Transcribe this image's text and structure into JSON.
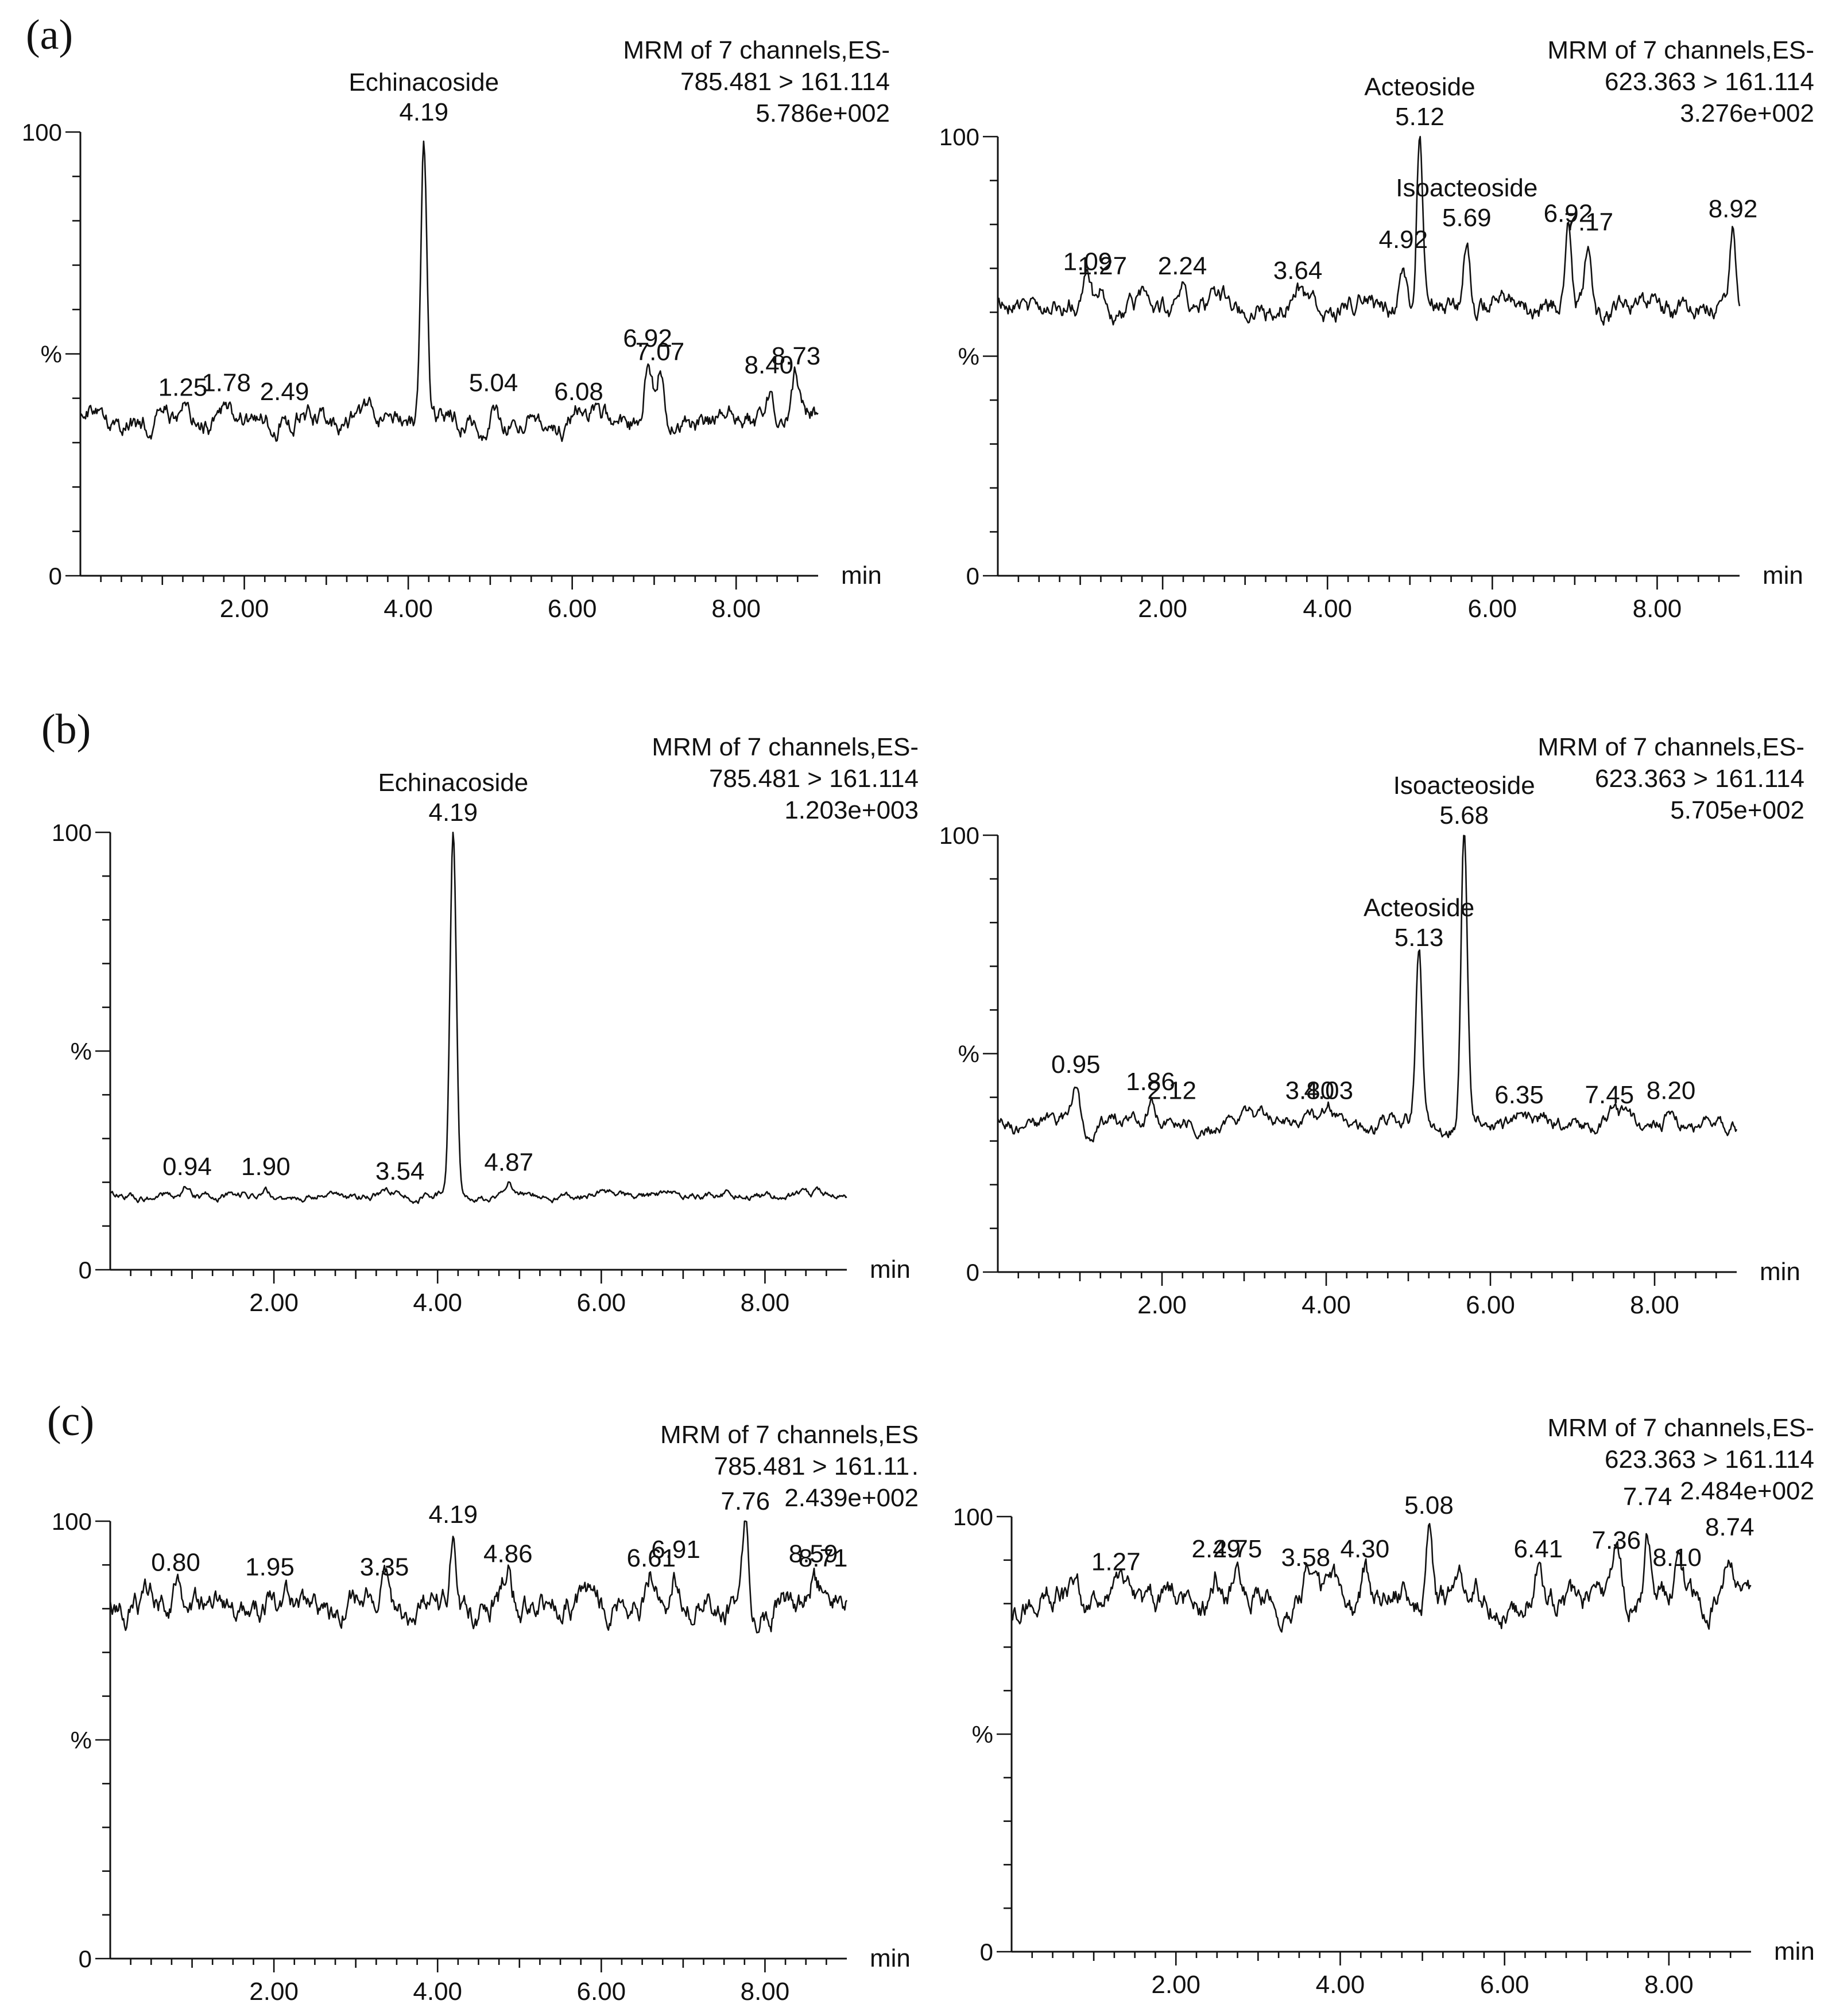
{
  "chart_data": [
    {
      "type": "line",
      "panel": "(a)",
      "title": "",
      "header": [
        "MRM of 7 channels,ES-",
        "785.481 > 161.114",
        "5.786e+002"
      ],
      "xlabel": "min",
      "ylabel": "%",
      "xlim": [
        0,
        9
      ],
      "ylim": [
        0,
        100
      ],
      "xtick_labels": [
        "2.00",
        "4.00",
        "6.00",
        "8.00"
      ],
      "ytick_labels": [
        "0",
        "%",
        "100"
      ],
      "baseline_level": 35,
      "noise": 3.5,
      "peaks": [
        {
          "x": 4.19,
          "y": 100,
          "label": "4.19",
          "compound": "Echinacoside"
        },
        {
          "x": 1.25,
          "y": 38,
          "label": "1.25"
        },
        {
          "x": 1.78,
          "y": 39,
          "label": "1.78"
        },
        {
          "x": 2.49,
          "y": 37,
          "label": "2.49"
        },
        {
          "x": 5.04,
          "y": 39,
          "label": "5.04"
        },
        {
          "x": 6.08,
          "y": 37,
          "label": "6.08"
        },
        {
          "x": 6.92,
          "y": 49,
          "label": "6.92"
        },
        {
          "x": 7.07,
          "y": 46,
          "label": "7.07"
        },
        {
          "x": 8.4,
          "y": 43,
          "label": "8.40"
        },
        {
          "x": 8.73,
          "y": 45,
          "label": "8.73"
        }
      ]
    },
    {
      "type": "line",
      "panel": "",
      "title": "",
      "header": [
        "MRM of 7 channels,ES-",
        "623.363 > 161.114",
        "3.276e+002"
      ],
      "xlabel": "min",
      "ylabel": "%",
      "xlim": [
        0,
        9
      ],
      "ylim": [
        0,
        100
      ],
      "xtick_labels": [
        "2.00",
        "4.00",
        "6.00",
        "8.00"
      ],
      "ytick_labels": [
        "0",
        "%",
        "100"
      ],
      "baseline_level": 61,
      "noise": 3.5,
      "peaks": [
        {
          "x": 5.12,
          "y": 100,
          "label": "5.12",
          "compound": "Acteoside"
        },
        {
          "x": 5.69,
          "y": 77,
          "label": "5.69",
          "compound": "Isoacteoside"
        },
        {
          "x": 1.09,
          "y": 67,
          "label": "1.09"
        },
        {
          "x": 1.27,
          "y": 66,
          "label": "1.27"
        },
        {
          "x": 2.24,
          "y": 66,
          "label": "2.24"
        },
        {
          "x": 3.64,
          "y": 65,
          "label": "3.64"
        },
        {
          "x": 4.92,
          "y": 72,
          "label": "4.92"
        },
        {
          "x": 6.92,
          "y": 78,
          "label": "6.92"
        },
        {
          "x": 7.17,
          "y": 76,
          "label": "7.17"
        },
        {
          "x": 8.92,
          "y": 79,
          "label": "8.92"
        }
      ]
    },
    {
      "type": "line",
      "panel": "(b)",
      "title": "",
      "header": [
        "MRM of 7 channels,ES-",
        "785.481 > 161.114",
        "1.203e+003"
      ],
      "xlabel": "min",
      "ylabel": "%",
      "xlim": [
        0,
        9
      ],
      "ylim": [
        0,
        100
      ],
      "xtick_labels": [
        "2.00",
        "4.00",
        "6.00",
        "8.00"
      ],
      "ytick_labels": [
        "0",
        "%",
        "100"
      ],
      "baseline_level": 17,
      "noise": 1.2,
      "peaks": [
        {
          "x": 4.19,
          "y": 100,
          "label": "4.19",
          "compound": "Echinacoside"
        },
        {
          "x": 0.94,
          "y": 19,
          "label": "0.94"
        },
        {
          "x": 1.9,
          "y": 19,
          "label": "1.90"
        },
        {
          "x": 3.54,
          "y": 18,
          "label": "3.54"
        },
        {
          "x": 4.87,
          "y": 20,
          "label": "4.87"
        }
      ]
    },
    {
      "type": "line",
      "panel": "",
      "title": "",
      "header": [
        "MRM of 7 channels,ES-",
        "623.363 > 161.114",
        "5.705e+002"
      ],
      "xlabel": "min",
      "ylabel": "%",
      "xlim": [
        0,
        9
      ],
      "ylim": [
        0,
        100
      ],
      "xtick_labels": [
        "2.00",
        "4.00",
        "6.00",
        "8.00"
      ],
      "ytick_labels": [
        "0",
        "%",
        "100"
      ],
      "baseline_level": 34,
      "noise": 2.5,
      "peaks": [
        {
          "x": 5.68,
          "y": 100,
          "label": "5.68",
          "compound": "Isoacteoside"
        },
        {
          "x": 5.13,
          "y": 72,
          "label": "5.13",
          "compound": "Acteoside"
        },
        {
          "x": 0.95,
          "y": 43,
          "label": "0.95"
        },
        {
          "x": 1.86,
          "y": 39,
          "label": "1.86"
        },
        {
          "x": 2.12,
          "y": 37,
          "label": "2.12"
        },
        {
          "x": 3.8,
          "y": 37,
          "label": "3.80"
        },
        {
          "x": 4.03,
          "y": 37,
          "label": "4.03"
        },
        {
          "x": 6.35,
          "y": 36,
          "label": "6.35"
        },
        {
          "x": 7.45,
          "y": 36,
          "label": "7.45"
        },
        {
          "x": 8.2,
          "y": 37,
          "label": "8.20"
        }
      ]
    },
    {
      "type": "line",
      "panel": "(c)",
      "title": "",
      "header": [
        "MRM of 7 channels,ES",
        "785.481 > 161.11 .",
        "2.439e+002"
      ],
      "xlabel": "min",
      "ylabel": "%",
      "xlim": [
        0,
        9
      ],
      "ylim": [
        0,
        100
      ],
      "xtick_labels": [
        "2.00",
        "4.00",
        "6.00",
        "8.00"
      ],
      "ytick_labels": [
        "0",
        "%",
        "100"
      ],
      "baseline_level": 81,
      "noise": 4.5,
      "peaks": [
        {
          "x": 7.76,
          "y": 100,
          "label": "7.76"
        },
        {
          "x": 0.8,
          "y": 86,
          "label": "0.80"
        },
        {
          "x": 1.95,
          "y": 85,
          "label": "1.95"
        },
        {
          "x": 3.35,
          "y": 85,
          "label": "3.35"
        },
        {
          "x": 4.19,
          "y": 97,
          "label": "4.19"
        },
        {
          "x": 4.86,
          "y": 88,
          "label": "4.86"
        },
        {
          "x": 6.61,
          "y": 87,
          "label": "6.61"
        },
        {
          "x": 6.91,
          "y": 89,
          "label": "6.91"
        },
        {
          "x": 8.59,
          "y": 88,
          "label": "8.59"
        },
        {
          "x": 8.71,
          "y": 87,
          "label": "8.71"
        }
      ]
    },
    {
      "type": "line",
      "panel": "",
      "title": "",
      "header": [
        "MRM of 7 channels,ES-",
        "623.363 > 161.114",
        "2.484e+002"
      ],
      "xlabel": "min",
      "ylabel": "%",
      "xlim": [
        0,
        9
      ],
      "ylim": [
        0,
        100
      ],
      "xtick_labels": [
        "2.00",
        "4.00",
        "6.00",
        "8.00"
      ],
      "ytick_labels": [
        "0",
        "%",
        "100"
      ],
      "baseline_level": 81,
      "noise": 4.5,
      "peaks": [
        {
          "x": 5.08,
          "y": 98,
          "label": "5.08"
        },
        {
          "x": 7.74,
          "y": 100,
          "label": "7.74"
        },
        {
          "x": 1.27,
          "y": 85,
          "label": "1.27"
        },
        {
          "x": 2.49,
          "y": 88,
          "label": "2.49"
        },
        {
          "x": 2.75,
          "y": 88,
          "label": "2.75"
        },
        {
          "x": 3.58,
          "y": 86,
          "label": "3.58"
        },
        {
          "x": 4.3,
          "y": 88,
          "label": "4.30"
        },
        {
          "x": 6.41,
          "y": 88,
          "label": "6.41"
        },
        {
          "x": 7.36,
          "y": 90,
          "label": "7.36"
        },
        {
          "x": 8.1,
          "y": 86,
          "label": "8.10"
        },
        {
          "x": 8.74,
          "y": 93,
          "label": "8.74"
        }
      ]
    }
  ]
}
